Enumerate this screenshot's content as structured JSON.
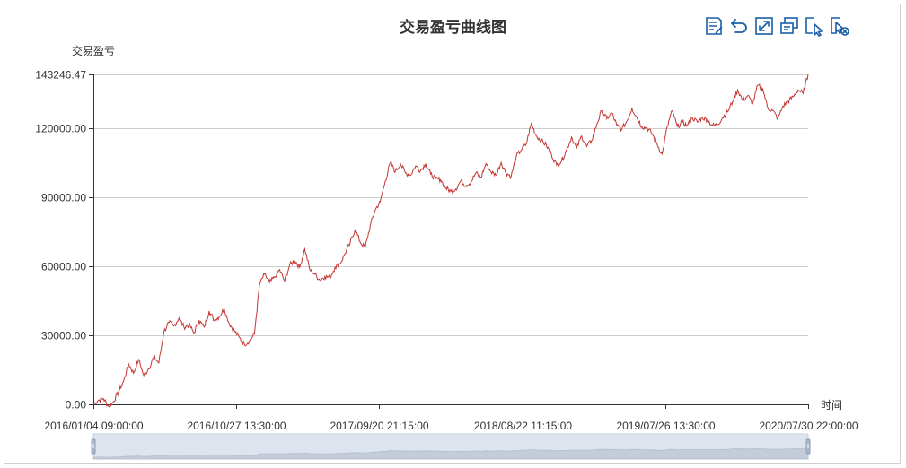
{
  "title": "交易盈亏曲线图",
  "toolbox": {
    "items": [
      {
        "name": "data-view-icon"
      },
      {
        "name": "restore-icon"
      },
      {
        "name": "zoom-area-icon"
      },
      {
        "name": "save-image-icon"
      },
      {
        "name": "select-zoom-icon"
      },
      {
        "name": "zoom-reset-icon"
      }
    ],
    "color": "#1a5ea8"
  },
  "chart_data": {
    "type": "line",
    "title": "交易盈亏曲线图",
    "xlabel": "时间",
    "ylabel": "交易盈亏",
    "x_tick_labels": [
      "2016/01/04 09:00:00",
      "2016/10/27 13:30:00",
      "2017/09/20 21:15:00",
      "2018/08/22 11:15:00",
      "2019/07/26 13:30:00",
      "2020/07/30 22:00:00"
    ],
    "y_tick_labels": [
      "0.00",
      "30000.00",
      "60000.00",
      "90000.00",
      "120000.00",
      "143246.47"
    ],
    "ylim": [
      0,
      143246.47
    ],
    "grid": true,
    "line_color": "#c23531",
    "datazoom": {
      "start": 0,
      "end": 100
    },
    "series": [
      {
        "values": [
          0,
          1800,
          2500,
          -900,
          1200,
          5500,
          10000,
          17500,
          13500,
          19500,
          12500,
          15500,
          20500,
          18000,
          31500,
          35500,
          34000,
          37500,
          33500,
          34500,
          31000,
          36500,
          33500,
          40500,
          36500,
          38000,
          41500,
          35000,
          32000,
          29000,
          26000,
          27500,
          30500,
          52000,
          56500,
          53000,
          55000,
          58500,
          53500,
          60500,
          62500,
          59500,
          67500,
          58500,
          56500,
          54000,
          55500,
          55000,
          59500,
          61000,
          65500,
          70000,
          76000,
          70500,
          68000,
          77500,
          84500,
          88000,
          97000,
          105000,
          101000,
          104500,
          100500,
          99500,
          103500,
          101500,
          104500,
          100000,
          98000,
          97500,
          94000,
          92500,
          93500,
          97000,
          95000,
          96500,
          100500,
          98500,
          104500,
          101000,
          99500,
          105000,
          100500,
          99000,
          107500,
          110500,
          113000,
          122000,
          116500,
          114500,
          112500,
          108500,
          104000,
          105500,
          110500,
          116000,
          111000,
          116500,
          112000,
          114500,
          121500,
          127500,
          124000,
          126500,
          121000,
          119500,
          123000,
          128500,
          124500,
          120500,
          120000,
          117500,
          113000,
          108500,
          120500,
          127500,
          120500,
          122500,
          121000,
          124500,
          122500,
          124500,
          123500,
          121000,
          121500,
          124500,
          127000,
          131500,
          136500,
          132000,
          134000,
          130500,
          138500,
          137000,
          128500,
          127500,
          124000,
          129500,
          131500,
          133500,
          136500,
          135000,
          143246.47
        ]
      }
    ]
  }
}
